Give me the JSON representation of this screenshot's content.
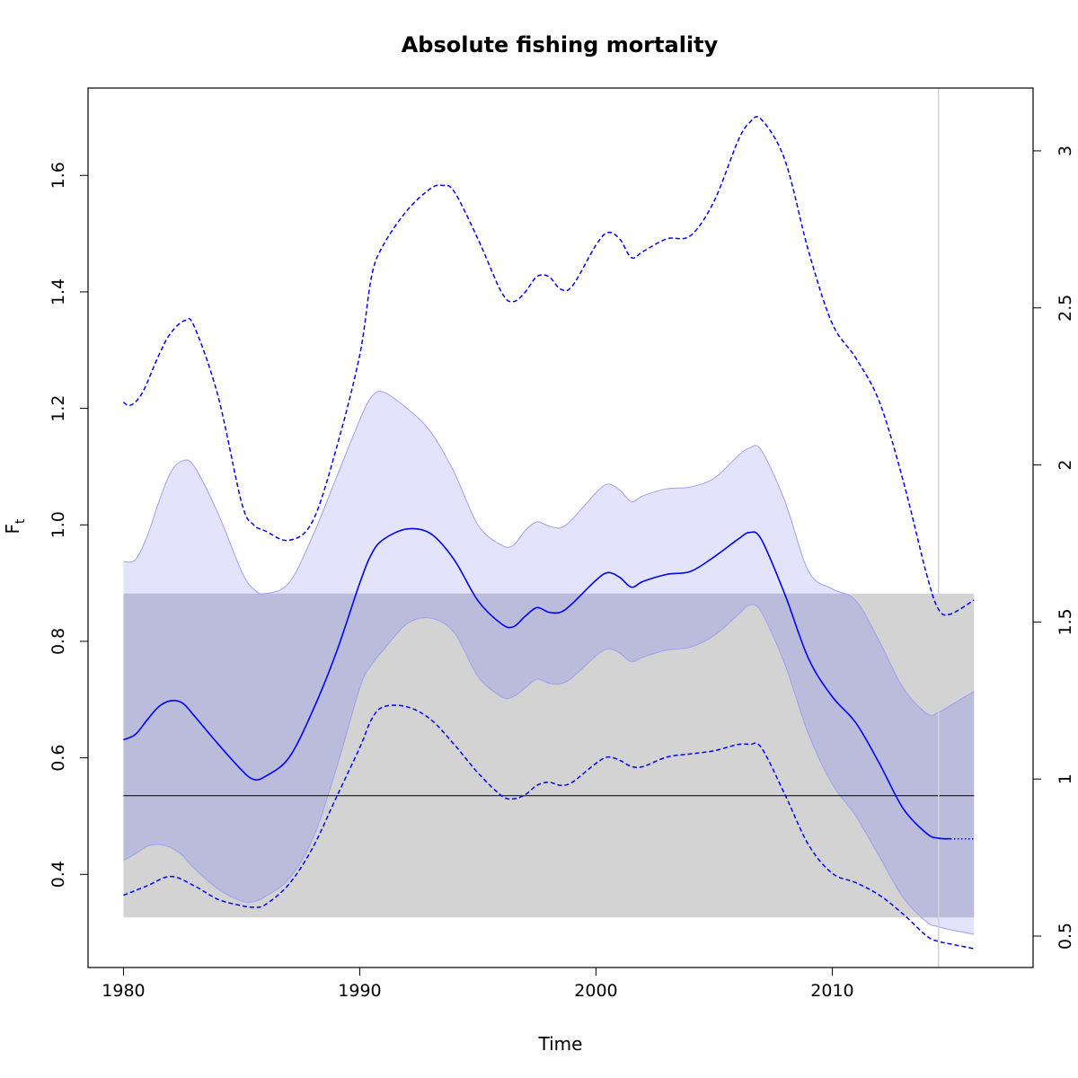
{
  "chart_data": {
    "type": "line",
    "title": "Absolute fishing mortality",
    "xlabel": "Time",
    "ylabel": "F",
    "ylabel_subscript": "t",
    "xlim": [
      1978.5,
      2018.5
    ],
    "ylim": [
      0.24,
      1.75
    ],
    "y2lim": [
      0.4,
      3.2
    ],
    "xticks": [
      1980,
      1990,
      2000,
      2010
    ],
    "yticks": [
      0.4,
      0.6,
      0.8,
      1.0,
      1.2,
      1.4,
      1.6
    ],
    "y2ticks": [
      0.5,
      1,
      1.5,
      2,
      2.5,
      3
    ],
    "xtick_labels": [
      "1980",
      "1990",
      "2000",
      "2010"
    ],
    "ytick_labels": [
      "0.4",
      "0.6",
      "0.8",
      "1.0",
      "1.2",
      "1.4",
      "1.6"
    ],
    "y2tick_labels": [
      "0.5",
      "1",
      "1.5",
      "2",
      "2.5",
      "3"
    ],
    "colors": {
      "main": "#0000ff",
      "ci_fill": "#e3e3fc",
      "ci_edge": "#a0a0f0",
      "ref_band": "#d3d3d3",
      "overlap": "#bbbbdb",
      "ref_line": "#000000",
      "vline": "#d3d3d3"
    },
    "reference": {
      "y": 0.535,
      "lower": 0.326,
      "upper": 0.882,
      "x_start": 1980,
      "x_end": 2016
    },
    "vline_x": 2014.5,
    "series": [
      {
        "role": "estimate",
        "style": "solid",
        "x": [
          1980,
          1980.5,
          1981,
          1981.5,
          1982,
          1982.5,
          1983,
          1984,
          1985,
          1985.5,
          1986,
          1987,
          1988,
          1989,
          1990,
          1990.5,
          1991,
          1992,
          1993,
          1994,
          1995,
          1996,
          1996.5,
          1997,
          1997.5,
          1998,
          1998.5,
          1999,
          2000,
          2000.5,
          2001,
          2001.5,
          2002,
          2003,
          2004,
          2005,
          2006,
          2006.5,
          2007,
          2008,
          2009,
          2010,
          2011,
          2012,
          2013,
          2014,
          2014.5,
          2015
        ],
        "y": [
          0.631,
          0.64,
          0.665,
          0.688,
          0.698,
          0.694,
          0.672,
          0.624,
          0.579,
          0.563,
          0.568,
          0.6,
          0.68,
          0.78,
          0.9,
          0.95,
          0.975,
          0.993,
          0.985,
          0.94,
          0.87,
          0.83,
          0.825,
          0.843,
          0.858,
          0.85,
          0.85,
          0.865,
          0.905,
          0.918,
          0.91,
          0.893,
          0.903,
          0.915,
          0.92,
          0.945,
          0.975,
          0.987,
          0.975,
          0.88,
          0.77,
          0.705,
          0.66,
          0.59,
          0.513,
          0.47,
          0.462,
          0.461
        ]
      },
      {
        "role": "estimate-projection",
        "style": "dotted",
        "x": [
          2015,
          2016
        ],
        "y": [
          0.461,
          0.461
        ]
      },
      {
        "role": "ci-upper",
        "style": "band-edge",
        "x": [
          1980,
          1980.5,
          1981,
          1981.5,
          1982,
          1982.5,
          1983,
          1984,
          1985,
          1985.5,
          1986,
          1987,
          1988,
          1989,
          1990,
          1990.5,
          1991,
          1992,
          1993,
          1994,
          1995,
          1996,
          1996.5,
          1997,
          1997.5,
          1998,
          1998.5,
          1999,
          2000,
          2000.5,
          2001,
          2001.5,
          2002,
          2003,
          2004,
          2005,
          2006,
          2006.5,
          2007,
          2008,
          2009,
          2010,
          2011,
          2012,
          2013,
          2014,
          2014.5,
          2015,
          2016
        ],
        "y": [
          0.937,
          0.94,
          0.98,
          1.04,
          1.09,
          1.11,
          1.1,
          1.02,
          0.92,
          0.89,
          0.882,
          0.9,
          0.98,
          1.08,
          1.18,
          1.22,
          1.228,
          1.2,
          1.16,
          1.09,
          1.0,
          0.965,
          0.965,
          0.99,
          1.005,
          0.998,
          0.995,
          1.01,
          1.055,
          1.07,
          1.06,
          1.04,
          1.05,
          1.062,
          1.065,
          1.08,
          1.118,
          1.132,
          1.128,
          1.04,
          0.92,
          0.89,
          0.87,
          0.8,
          0.72,
          0.676,
          0.678,
          0.69,
          0.714
        ]
      },
      {
        "role": "ci-lower",
        "style": "band-edge",
        "x": [
          1980,
          1980.5,
          1981,
          1981.5,
          1982,
          1982.5,
          1983,
          1984,
          1985,
          1985.5,
          1986,
          1987,
          1988,
          1989,
          1990,
          1990.5,
          1991,
          1992,
          1993,
          1994,
          1995,
          1996,
          1996.5,
          1997,
          1997.5,
          1998,
          1998.5,
          1999,
          2000,
          2000.5,
          2001,
          2001.5,
          2002,
          2003,
          2004,
          2005,
          2006,
          2006.5,
          2007,
          2008,
          2009,
          2010,
          2011,
          2012,
          2013,
          2014,
          2014.5,
          2015,
          2016
        ],
        "y": [
          0.424,
          0.435,
          0.448,
          0.451,
          0.446,
          0.432,
          0.41,
          0.375,
          0.354,
          0.353,
          0.362,
          0.392,
          0.46,
          0.58,
          0.72,
          0.76,
          0.785,
          0.83,
          0.84,
          0.815,
          0.74,
          0.705,
          0.705,
          0.72,
          0.735,
          0.728,
          0.727,
          0.738,
          0.775,
          0.787,
          0.78,
          0.765,
          0.773,
          0.785,
          0.79,
          0.81,
          0.845,
          0.862,
          0.85,
          0.76,
          0.64,
          0.555,
          0.5,
          0.43,
          0.36,
          0.318,
          0.31,
          0.305,
          0.297
        ]
      },
      {
        "role": "relative-upper",
        "style": "dashed",
        "axis": "right",
        "x": [
          1980,
          1980.3,
          1980.8,
          1981.5,
          1982,
          1982.6,
          1983,
          1984,
          1985,
          1985.5,
          1986,
          1987,
          1988,
          1989,
          1990,
          1990.5,
          1991,
          1992,
          1993,
          1993.5,
          1994,
          1995,
          1996,
          1996.5,
          1997,
          1997.5,
          1998,
          1998.5,
          1999,
          2000,
          2000.5,
          2001,
          2001.5,
          2002,
          2003,
          2004,
          2005,
          2006,
          2006.5,
          2007,
          2008,
          2009,
          2010,
          2011,
          2012,
          2013,
          2014,
          2014.5,
          2015,
          2016
        ],
        "y": [
          2.2,
          2.19,
          2.23,
          2.35,
          2.42,
          2.46,
          2.44,
          2.22,
          1.88,
          1.81,
          1.79,
          1.76,
          1.82,
          2.05,
          2.35,
          2.6,
          2.7,
          2.81,
          2.88,
          2.89,
          2.87,
          2.72,
          2.55,
          2.52,
          2.55,
          2.6,
          2.6,
          2.56,
          2.57,
          2.7,
          2.74,
          2.72,
          2.66,
          2.68,
          2.72,
          2.73,
          2.84,
          3.03,
          3.09,
          3.1,
          2.97,
          2.68,
          2.45,
          2.34,
          2.2,
          1.95,
          1.65,
          1.54,
          1.525,
          1.57
        ]
      },
      {
        "role": "relative-lower",
        "style": "dashed",
        "axis": "right",
        "x": [
          1980,
          1981,
          1982,
          1983,
          1984,
          1985,
          1985.5,
          1986,
          1987,
          1988,
          1989,
          1990,
          1990.5,
          1991,
          1992,
          1993,
          1994,
          1995,
          1996,
          1996.5,
          1997,
          1997.5,
          1998,
          1998.5,
          1999,
          2000,
          2000.5,
          2001,
          2001.5,
          2002,
          2003,
          2004,
          2005,
          2006,
          2006.5,
          2007,
          2008,
          2009,
          2010,
          2011,
          2012,
          2013,
          2014,
          2014.5,
          2015,
          2016
        ],
        "y": [
          0.63,
          0.66,
          0.69,
          0.66,
          0.617,
          0.597,
          0.592,
          0.6,
          0.665,
          0.78,
          0.94,
          1.1,
          1.19,
          1.23,
          1.23,
          1.19,
          1.11,
          1.02,
          0.947,
          0.937,
          0.95,
          0.98,
          0.99,
          0.98,
          0.99,
          1.05,
          1.07,
          1.06,
          1.04,
          1.04,
          1.07,
          1.08,
          1.09,
          1.11,
          1.11,
          1.1,
          0.95,
          0.79,
          0.7,
          0.67,
          0.63,
          0.57,
          0.5,
          0.483,
          0.475,
          0.46
        ]
      }
    ]
  }
}
